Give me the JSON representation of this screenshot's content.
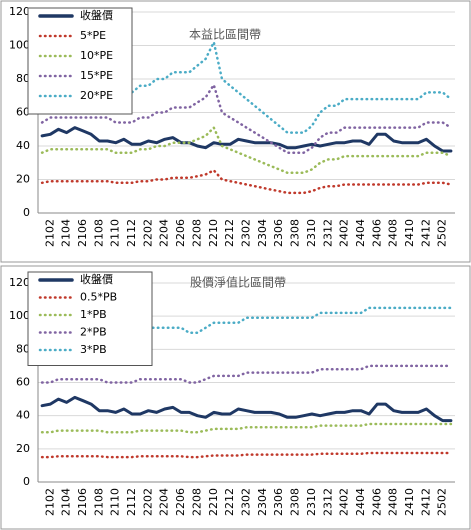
{
  "chart_data": [
    {
      "type": "line",
      "annotation": "本益比區間帶",
      "categories": [
        null,
        "2102",
        null,
        "2104",
        null,
        "2106",
        null,
        "2108",
        null,
        "2110",
        null,
        "2112",
        null,
        "2202",
        null,
        "2204",
        null,
        "2206",
        null,
        "2208",
        null,
        "2210",
        null,
        "2212",
        null,
        "2302",
        null,
        "2304",
        null,
        "2306",
        null,
        "2308",
        null,
        "2310",
        null,
        "2312",
        null,
        "2402",
        null,
        "2404",
        null,
        "2406",
        null,
        "2408",
        null,
        "2410",
        null,
        "2412",
        null,
        "2502",
        null
      ],
      "ylim": [
        0,
        120
      ],
      "yticks": [
        0,
        20,
        40,
        60,
        80,
        100,
        120
      ],
      "grid": true,
      "series": [
        {
          "name": "收盤價",
          "color": "#1f3864",
          "style": "solid",
          "values": [
            46,
            47,
            50,
            48,
            51,
            49,
            47,
            43,
            43,
            42,
            44,
            41,
            41,
            43,
            42,
            44,
            45,
            42,
            42,
            40,
            39,
            42,
            41,
            41,
            44,
            43,
            42,
            42,
            42,
            41,
            39,
            39,
            40,
            41,
            40,
            41,
            42,
            42,
            43,
            43,
            41,
            47,
            47,
            43,
            42,
            42,
            42,
            44,
            40,
            37,
            37
          ]
        },
        {
          "name": "5*PE",
          "color": "#c0392b",
          "style": "dotted",
          "values": [
            18,
            19,
            19,
            19,
            19,
            19,
            19,
            19,
            19,
            18,
            18,
            18,
            19,
            19,
            20,
            20,
            21,
            21,
            21,
            22,
            23,
            25.5,
            20,
            19,
            18,
            17,
            16,
            15,
            14,
            13,
            12,
            12,
            12,
            13,
            15,
            16,
            16,
            17,
            17,
            17,
            17,
            17,
            17,
            17,
            17,
            17,
            17,
            18,
            18,
            18,
            17
          ]
        },
        {
          "name": "10*PE",
          "color": "#9bbb59",
          "style": "dotted",
          "values": [
            36,
            38,
            38,
            38,
            38,
            38,
            38,
            38,
            38,
            36,
            36,
            36,
            38,
            38,
            40,
            40,
            42,
            42,
            42,
            44,
            46,
            51,
            40,
            38,
            36,
            34,
            32,
            30,
            28,
            26,
            24,
            24,
            24,
            26,
            30,
            32,
            32,
            34,
            34,
            34,
            34,
            34,
            34,
            34,
            34,
            34,
            34,
            36,
            36,
            36,
            34
          ]
        },
        {
          "name": "15*PE",
          "color": "#8064a2",
          "style": "dotted",
          "values": [
            54,
            57,
            57,
            57,
            57,
            57,
            57,
            57,
            57,
            54,
            54,
            54,
            57,
            57,
            60,
            60,
            63,
            63,
            63,
            66,
            69,
            76.5,
            60,
            57,
            54,
            51,
            48,
            45,
            42,
            39,
            36,
            36,
            36,
            39,
            45,
            48,
            48,
            51,
            51,
            51,
            51,
            51,
            51,
            51,
            51,
            51,
            51,
            54,
            54,
            54,
            51
          ]
        },
        {
          "name": "20*PE",
          "color": "#4bacc6",
          "style": "dotted",
          "values": [
            72,
            76,
            76,
            76,
            76,
            76,
            76,
            76,
            76,
            72,
            72,
            72,
            76,
            76,
            80,
            80,
            84,
            84,
            84,
            88,
            92,
            102,
            80,
            76,
            72,
            68,
            64,
            60,
            56,
            52,
            48,
            48,
            48,
            52,
            60,
            64,
            64,
            68,
            68,
            68,
            68,
            68,
            68,
            68,
            68,
            68,
            68,
            72,
            72,
            72,
            68
          ]
        }
      ]
    },
    {
      "type": "line",
      "annotation": "股價淨值比區間帶",
      "categories": [
        null,
        "2102",
        null,
        "2104",
        null,
        "2106",
        null,
        "2108",
        null,
        "2110",
        null,
        "2112",
        null,
        "2202",
        null,
        "2204",
        null,
        "2206",
        null,
        "2208",
        null,
        "2210",
        null,
        "2212",
        null,
        "2302",
        null,
        "2304",
        null,
        "2306",
        null,
        "2308",
        null,
        "2310",
        null,
        "2312",
        null,
        "2402",
        null,
        "2404",
        null,
        "2406",
        null,
        "2408",
        null,
        "2410",
        null,
        "2412",
        null,
        "2502",
        null
      ],
      "ylim": [
        0,
        120
      ],
      "yticks": [
        0,
        20,
        40,
        60,
        80,
        100,
        120
      ],
      "grid": true,
      "series": [
        {
          "name": "收盤價",
          "color": "#1f3864",
          "style": "solid",
          "values": [
            46,
            47,
            50,
            48,
            51,
            49,
            47,
            43,
            43,
            42,
            44,
            41,
            41,
            43,
            42,
            44,
            45,
            42,
            42,
            40,
            39,
            42,
            41,
            41,
            44,
            43,
            42,
            42,
            42,
            41,
            39,
            39,
            40,
            41,
            40,
            41,
            42,
            42,
            43,
            43,
            41,
            47,
            47,
            43,
            42,
            42,
            42,
            44,
            40,
            37,
            37
          ]
        },
        {
          "name": "0.5*PB",
          "color": "#c0392b",
          "style": "dotted",
          "values": [
            15,
            15,
            15.5,
            15.5,
            15.5,
            15.5,
            15.5,
            15.5,
            15,
            15,
            15,
            15,
            15.5,
            15.5,
            15.5,
            15.5,
            15.5,
            15.5,
            15,
            15,
            15.5,
            16,
            16,
            16,
            16,
            16.5,
            16.5,
            16.5,
            16.5,
            16.5,
            16.5,
            16.5,
            16.5,
            16.5,
            17,
            17,
            17,
            17,
            17,
            17,
            17.5,
            17.5,
            17.5,
            17.5,
            17.5,
            17.5,
            17.5,
            17.5,
            17.5,
            17.5,
            17.5
          ]
        },
        {
          "name": "1*PB",
          "color": "#9bbb59",
          "style": "dotted",
          "values": [
            30,
            30,
            31,
            31,
            31,
            31,
            31,
            31,
            30,
            30,
            30,
            30,
            31,
            31,
            31,
            31,
            31,
            31,
            30,
            30,
            31,
            32,
            32,
            32,
            32,
            33,
            33,
            33,
            33,
            33,
            33,
            33,
            33,
            33,
            34,
            34,
            34,
            34,
            34,
            34,
            35,
            35,
            35,
            35,
            35,
            35,
            35,
            35,
            35,
            35,
            35
          ]
        },
        {
          "name": "2*PB",
          "color": "#8064a2",
          "style": "dotted",
          "values": [
            60,
            60,
            62,
            62,
            62,
            62,
            62,
            62,
            60,
            60,
            60,
            60,
            62,
            62,
            62,
            62,
            62,
            62,
            60,
            60,
            62,
            64,
            64,
            64,
            64,
            66,
            66,
            66,
            66,
            66,
            66,
            66,
            66,
            66,
            68,
            68,
            68,
            68,
            68,
            68,
            70,
            70,
            70,
            70,
            70,
            70,
            70,
            70,
            70,
            70,
            70
          ]
        },
        {
          "name": "3*PB",
          "color": "#4bacc6",
          "style": "dotted",
          "values": [
            90,
            90,
            93,
            93,
            93,
            93,
            93,
            93,
            90,
            90,
            90,
            90,
            93,
            93,
            93,
            93,
            93,
            93,
            90,
            90,
            93,
            96,
            96,
            96,
            96,
            99,
            99,
            99,
            99,
            99,
            99,
            99,
            99,
            99,
            102,
            102,
            102,
            102,
            102,
            102,
            105,
            105,
            105,
            105,
            105,
            105,
            105,
            105,
            105,
            105,
            105
          ]
        }
      ]
    }
  ]
}
